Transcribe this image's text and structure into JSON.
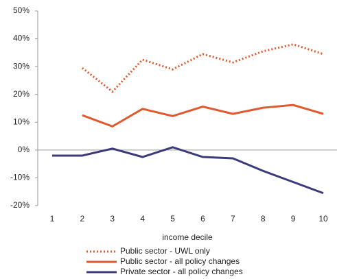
{
  "chart_data": {
    "type": "line",
    "x_label": "income decile",
    "categories": [
      "1",
      "2",
      "3",
      "4",
      "5",
      "6",
      "7",
      "8",
      "9",
      "10"
    ],
    "series": [
      {
        "name": "Public sector  - UWL only",
        "color": "#e0582c",
        "style": "dotted",
        "values": [
          null,
          29.5,
          21,
          32.5,
          29,
          34.5,
          31.5,
          35.5,
          38,
          34.5
        ]
      },
      {
        "name": "Public sector - all policy changes",
        "color": "#e0582c",
        "style": "solid",
        "values": [
          null,
          12.5,
          8.5,
          14.8,
          12.2,
          15.6,
          13,
          15.2,
          16.2,
          13
        ]
      },
      {
        "name": "Private sector - all policy changes",
        "color": "#3b3a7a",
        "style": "solid",
        "values": [
          -2,
          -2,
          0.5,
          -2.5,
          1,
          -2.5,
          -3,
          -7.5,
          -11.5,
          -15.5
        ]
      }
    ],
    "ylim": [
      -20,
      50
    ],
    "yticks": [
      {
        "value": -20,
        "label": "-20%"
      },
      {
        "value": -10,
        "label": "-10%"
      },
      {
        "value": 0,
        "label": "0%"
      },
      {
        "value": 10,
        "label": "10%"
      },
      {
        "value": 20,
        "label": "20%"
      },
      {
        "value": 30,
        "label": "30%"
      },
      {
        "value": 40,
        "label": "40%"
      },
      {
        "value": 50,
        "label": "50%"
      }
    ]
  }
}
